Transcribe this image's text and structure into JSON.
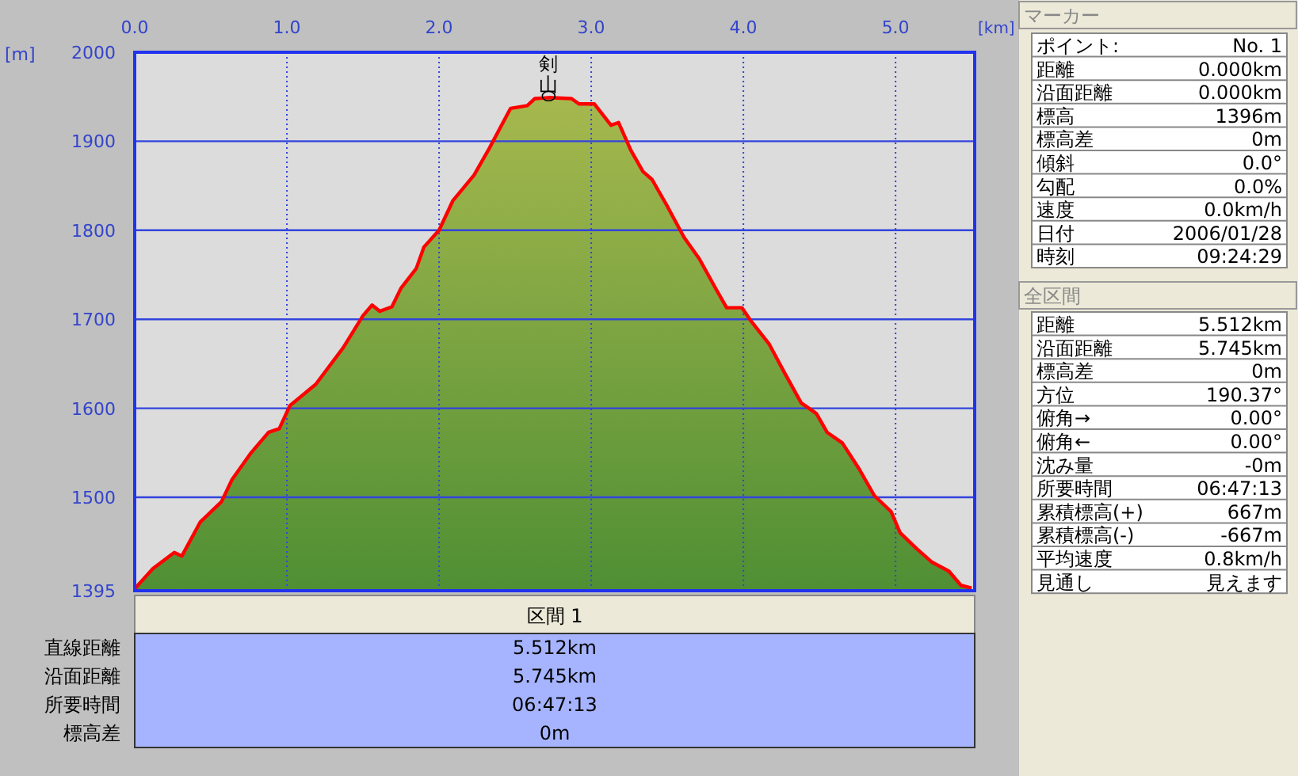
{
  "chart_data": {
    "type": "area",
    "xlabel": "[km]",
    "ylabel": "[m]",
    "x": [
      0,
      0.02,
      0.12,
      0.26,
      0.31,
      0.43,
      0.57,
      0.64,
      0.76,
      0.88,
      0.95,
      1.02,
      1.19,
      1.37,
      1.5,
      1.56,
      1.61,
      1.69,
      1.75,
      1.85,
      1.9,
      2.0,
      2.09,
      2.23,
      2.33,
      2.47,
      2.58,
      2.63,
      2.72,
      2.87,
      2.92,
      3.02,
      3.13,
      3.18,
      3.26,
      3.34,
      3.4,
      3.5,
      3.61,
      3.71,
      3.82,
      3.89,
      3.99,
      4.05,
      4.17,
      4.27,
      4.38,
      4.48,
      4.55,
      4.65,
      4.76,
      4.86,
      4.97,
      5.03,
      5.14,
      5.24,
      5.35,
      5.43,
      5.5
    ],
    "series": [
      {
        "color": "#ff0000",
        "values": [
          1396,
          1401,
          1420,
          1438,
          1434,
          1472,
          1495,
          1520,
          1549,
          1573,
          1577,
          1603,
          1627,
          1668,
          1704,
          1716,
          1709,
          1714,
          1735,
          1757,
          1781,
          1800,
          1833,
          1862,
          1892,
          1937,
          1940,
          1948,
          1949,
          1948,
          1942,
          1942,
          1918,
          1921,
          1890,
          1866,
          1857,
          1827,
          1792,
          1768,
          1734,
          1713,
          1713,
          1698,
          1672,
          1640,
          1606,
          1594,
          1573,
          1561,
          1532,
          1502,
          1484,
          1460,
          1442,
          1427,
          1417,
          1401,
          1398
        ]
      }
    ],
    "xlim": [
      0,
      5.52
    ],
    "ylim": [
      1395,
      2000
    ],
    "xticks": [
      {
        "value": 0,
        "label": "0.0"
      },
      {
        "value": 1,
        "label": "1.0"
      },
      {
        "value": 2,
        "label": "2.0"
      },
      {
        "value": 3,
        "label": "3.0"
      },
      {
        "value": 4,
        "label": "4.0"
      },
      {
        "value": 5,
        "label": "5.0"
      }
    ],
    "yticks": [
      1395,
      1500,
      1600,
      1700,
      1800,
      1900,
      2000
    ],
    "grid": true,
    "marker": "none",
    "line_style": "solid",
    "annotations": [
      {
        "text": "剣山",
        "x": 2.72,
        "y": 1949
      },
      "区間 1",
      "直線距離",
      "5.512km",
      "沿面距離",
      "5.745km",
      "所要時間",
      "06:47:13",
      "標高差",
      "0m",
      "マーカー",
      "ポイント:",
      "No. 1",
      "距離",
      "0.000km",
      "沿面距離",
      "0.000km",
      "標高",
      "1396m",
      "標高差",
      "0m",
      "傾斜",
      "0.0°",
      "勾配",
      "0.0%",
      "速度",
      "0.0km/h",
      "日付",
      "2006/01/28",
      "時刻",
      "09:24:29",
      "全区間",
      "距離",
      "5.512km",
      "沿面距離",
      "5.745km",
      "標高差",
      "0m",
      "方位",
      "190.37°",
      "俯角→",
      "0.00°",
      "俯角←",
      "0.00°",
      "沈み量",
      "-0m",
      "所要時間",
      "06:47:13",
      "累積標高(+)",
      "667m",
      "累積標高(-)",
      "-667m",
      "平均速度",
      "0.8km/h",
      "見通し",
      "見えます"
    ]
  }
}
